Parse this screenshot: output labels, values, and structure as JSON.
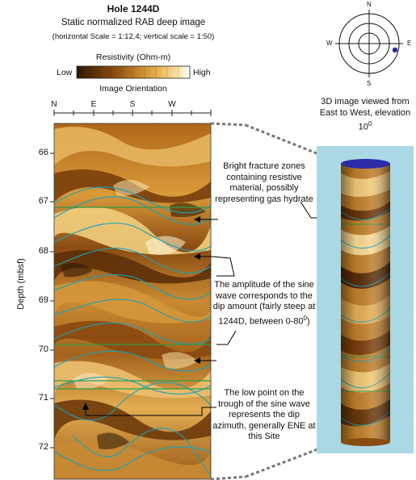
{
  "header": {
    "title": "Hole 1244D",
    "subtitle": "Static normalized RAB deep image",
    "scale_note": "(horizontal Scale = 1:12.4; vertical scale = 1:50)"
  },
  "resistivity_scale": {
    "label": "Resistivity (Ohm-m)",
    "low": "Low",
    "high": "High",
    "colors": [
      "#2b1603",
      "#4a2606",
      "#6e3b0c",
      "#8f5012",
      "#ad6a1c",
      "#c8852b",
      "#dca03f",
      "#ebbb5c",
      "#f5d684",
      "#fbefc6",
      "#ffffff"
    ]
  },
  "orientation": {
    "label": "Image Orientation",
    "ticks": [
      "N",
      "E",
      "S",
      "W"
    ]
  },
  "depth_axis": {
    "label": "Depth (mbsf)",
    "ticks": [
      "66",
      "67",
      "68",
      "69",
      "70",
      "71",
      "72"
    ]
  },
  "annotations": {
    "fracture": "Bright fracture zones containing resistive material, possibly representing gas hydrate",
    "amplitude_a": "The amplitude of the sine wave corresponds to the dip amount (fairly steep at 1244D, between 0-80",
    "amplitude_sup": "0",
    "amplitude_b": ")",
    "lowpoint": "The low point on the trough of the sine wave represents the dip azimuth, generally ENE at this Site"
  },
  "compass": {
    "n": "N",
    "e": "E",
    "s": "S",
    "w": "W",
    "dot_color": "#2a2a9a"
  },
  "view3d": {
    "caption_a": "3D image viewed from East to West, elevation 10",
    "caption_sup": "0",
    "background": "#aad8e4",
    "cap_color": "#2c2ca8"
  },
  "colors": {
    "sine": "#16a3b8",
    "bedding": "#2f9d4a",
    "connector": "#777777"
  }
}
